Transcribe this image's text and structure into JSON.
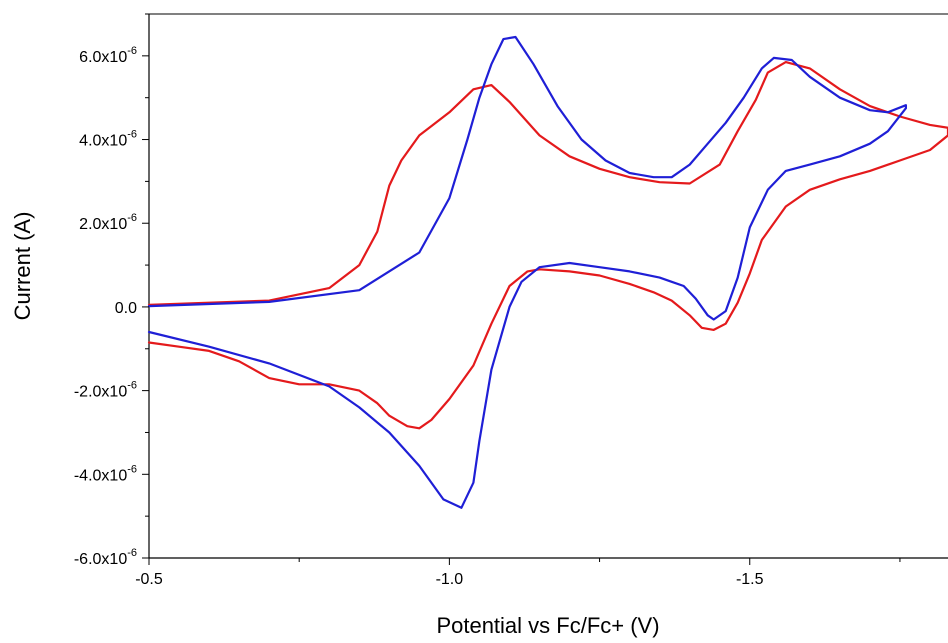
{
  "chart_data": {
    "type": "line",
    "title": "",
    "xlabel": "Potential vs Fc/Fc+ (V)",
    "ylabel": "Current (A)",
    "x_reversed": true,
    "xlim": [
      -0.5,
      -1.83
    ],
    "ylim": [
      -6e-06,
      7e-06
    ],
    "x_ticks": [
      {
        "value": -0.5,
        "label": "-0.5"
      },
      {
        "value": -1.0,
        "label": "-1.0"
      },
      {
        "value": -1.5,
        "label": "-1.5"
      }
    ],
    "y_ticks": [
      {
        "value": -6e-06,
        "mantissa": "-6.0x10",
        "exp": "-6"
      },
      {
        "value": -4e-06,
        "mantissa": "-4.0x10",
        "exp": "-6"
      },
      {
        "value": -2e-06,
        "mantissa": "-2.0x10",
        "exp": "-6"
      },
      {
        "value": 0,
        "mantissa": "0.0",
        "exp": ""
      },
      {
        "value": 2e-06,
        "mantissa": "2.0x10",
        "exp": "-6"
      },
      {
        "value": 4e-06,
        "mantissa": "4.0x10",
        "exp": "-6"
      },
      {
        "value": 6e-06,
        "mantissa": "6.0x10",
        "exp": "-6"
      }
    ],
    "grid": false,
    "legend": "none",
    "series": [
      {
        "color": "#e41a1c",
        "x": [
          -0.5,
          -0.7,
          -0.8,
          -0.85,
          -0.88,
          -0.9,
          -0.92,
          -0.95,
          -1.0,
          -1.04,
          -1.07,
          -1.1,
          -1.15,
          -1.2,
          -1.25,
          -1.3,
          -1.35,
          -1.4,
          -1.45,
          -1.48,
          -1.51,
          -1.53,
          -1.56,
          -1.6,
          -1.65,
          -1.7,
          -1.75,
          -1.8,
          -1.83,
          -1.83,
          -1.8,
          -1.75,
          -1.7,
          -1.65,
          -1.6,
          -1.56,
          -1.52,
          -1.5,
          -1.48,
          -1.46,
          -1.44,
          -1.42,
          -1.4,
          -1.37,
          -1.34,
          -1.3,
          -1.25,
          -1.2,
          -1.15,
          -1.13,
          -1.1,
          -1.07,
          -1.04,
          -1.0,
          -0.97,
          -0.95,
          -0.93,
          -0.9,
          -0.88,
          -0.85,
          -0.8,
          -0.75,
          -0.7,
          -0.65,
          -0.6,
          -0.55,
          -0.5
        ],
        "y": [
          5e-08,
          1.5e-07,
          4.5e-07,
          1e-06,
          1.8e-06,
          2.9e-06,
          3.5e-06,
          4.1e-06,
          4.65e-06,
          5.2e-06,
          5.3e-06,
          4.9e-06,
          4.1e-06,
          3.6e-06,
          3.3e-06,
          3.1e-06,
          2.98e-06,
          2.95e-06,
          3.4e-06,
          4.2e-06,
          4.95e-06,
          5.6e-06,
          5.85e-06,
          5.7e-06,
          5.2e-06,
          4.8e-06,
          4.55e-06,
          4.35e-06,
          4.28e-06,
          4.1e-06,
          3.75e-06,
          3.5e-06,
          3.25e-06,
          3.05e-06,
          2.8e-06,
          2.4e-06,
          1.6e-06,
          8e-07,
          1e-07,
          -4e-07,
          -5.5e-07,
          -5e-07,
          -2e-07,
          1.5e-07,
          3.5e-07,
          5.5e-07,
          7.5e-07,
          8.5e-07,
          9e-07,
          8.5e-07,
          5e-07,
          -4e-07,
          -1.4e-06,
          -2.2e-06,
          -2.7e-06,
          -2.9e-06,
          -2.85e-06,
          -2.6e-06,
          -2.3e-06,
          -2e-06,
          -1.85e-06,
          -1.85e-06,
          -1.7e-06,
          -1.3e-06,
          -1.05e-06,
          -9.5e-07,
          -8.5e-07
        ]
      },
      {
        "color": "#1f1fd6",
        "x": [
          -0.5,
          -0.7,
          -0.85,
          -0.95,
          -1.0,
          -1.03,
          -1.05,
          -1.07,
          -1.09,
          -1.11,
          -1.14,
          -1.18,
          -1.22,
          -1.26,
          -1.3,
          -1.34,
          -1.37,
          -1.4,
          -1.43,
          -1.46,
          -1.49,
          -1.52,
          -1.54,
          -1.57,
          -1.6,
          -1.65,
          -1.7,
          -1.73,
          -1.76,
          -1.76,
          -1.73,
          -1.7,
          -1.65,
          -1.6,
          -1.56,
          -1.53,
          -1.5,
          -1.48,
          -1.46,
          -1.44,
          -1.43,
          -1.41,
          -1.39,
          -1.37,
          -1.35,
          -1.3,
          -1.25,
          -1.2,
          -1.15,
          -1.12,
          -1.1,
          -1.07,
          -1.05,
          -1.04,
          -1.02,
          -0.99,
          -0.95,
          -0.9,
          -0.85,
          -0.8,
          -0.7,
          -0.6,
          -0.5
        ],
        "y": [
          2e-08,
          1.2e-07,
          4e-07,
          1.3e-06,
          2.6e-06,
          4e-06,
          5e-06,
          5.8e-06,
          6.4e-06,
          6.45e-06,
          5.8e-06,
          4.8e-06,
          4e-06,
          3.5e-06,
          3.2e-06,
          3.1e-06,
          3.1e-06,
          3.4e-06,
          3.9e-06,
          4.4e-06,
          5e-06,
          5.7e-06,
          5.95e-06,
          5.9e-06,
          5.5e-06,
          5e-06,
          4.7e-06,
          4.65e-06,
          4.82e-06,
          4.75e-06,
          4.2e-06,
          3.9e-06,
          3.6e-06,
          3.4e-06,
          3.25e-06,
          2.8e-06,
          1.9e-06,
          7e-07,
          -1e-07,
          -3e-07,
          -2e-07,
          2e-07,
          5e-07,
          6e-07,
          7e-07,
          8.5e-07,
          9.5e-07,
          1.05e-06,
          9.5e-07,
          6e-07,
          0.0,
          -1.5e-06,
          -3.2e-06,
          -4.2e-06,
          -4.8e-06,
          -4.6e-06,
          -3.8e-06,
          -3e-06,
          -2.4e-06,
          -1.9e-06,
          -1.35e-06,
          -9.5e-07,
          -6e-07
        ]
      }
    ]
  }
}
